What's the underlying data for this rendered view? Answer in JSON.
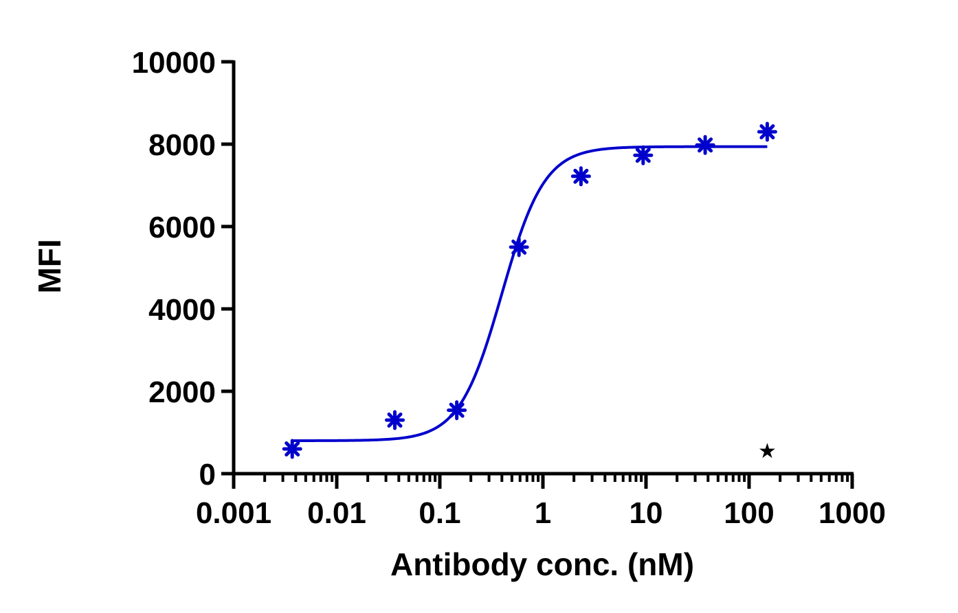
{
  "chart_data": {
    "type": "scatter",
    "xlabel": "Antibody conc. (nM)",
    "ylabel": "MFI",
    "x_scale": "log",
    "xlim": [
      0.001,
      1000
    ],
    "ylim": [
      0,
      10000
    ],
    "x_ticks": [
      0.001,
      0.01,
      0.1,
      1,
      10,
      100,
      1000
    ],
    "x_tick_labels": [
      "0.001",
      "0.01",
      "0.1",
      "1",
      "10",
      "100",
      "1000"
    ],
    "y_ticks": [
      0,
      2000,
      4000,
      6000,
      8000,
      10000
    ],
    "y_tick_labels": [
      "0",
      "2000",
      "4000",
      "6000",
      "8000",
      "10000"
    ],
    "grid": false,
    "series": [
      {
        "color": "#0000cc",
        "marker": "asterisk",
        "x": [
          0.0037,
          0.0366,
          0.146,
          0.586,
          2.34,
          9.38,
          37.5,
          150
        ],
        "y": [
          600,
          1300,
          1540,
          5500,
          7220,
          7730,
          7980,
          8300
        ]
      }
    ],
    "fit": {
      "type": "4PL",
      "color": "#0000cc",
      "x_range": [
        0.0037,
        150
      ],
      "bottom": 800,
      "top": 7940,
      "ec50": 0.4,
      "hill": 2.1
    },
    "annotations": [
      {
        "text": "★",
        "x": 150,
        "y": 550,
        "color": "#000000"
      }
    ]
  }
}
